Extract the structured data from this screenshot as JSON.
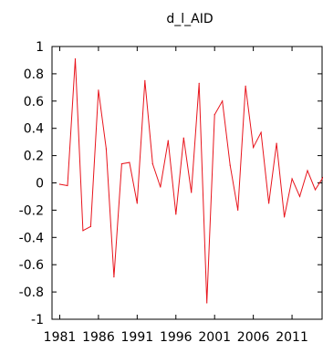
{
  "chart_data": {
    "type": "line",
    "title": "d_l_AID",
    "xlabel": "",
    "ylabel": "",
    "xlim": [
      1980,
      2015
    ],
    "ylim": [
      -1,
      1
    ],
    "x_ticks": [
      1981,
      1986,
      1991,
      1996,
      2001,
      2006,
      2011
    ],
    "x_tick_labels": [
      "1981",
      "1986",
      "1991",
      "1996",
      "2001",
      "2006",
      "2011"
    ],
    "y_ticks": [
      -1,
      -0.8,
      -0.6,
      -0.4,
      -0.2,
      0,
      0.2,
      0.4,
      0.6,
      0.8,
      1
    ],
    "y_tick_labels": [
      "-1",
      "-0.8",
      "-0.6",
      "-0.4",
      "-0.2",
      "0",
      "0.2",
      "0.4",
      "0.6",
      "0.8",
      "1"
    ],
    "grid": false,
    "line_color": "#e8141c",
    "series": [
      {
        "x": [
          1981,
          1982,
          1983,
          1984,
          1985,
          1986,
          1987,
          1988,
          1989,
          1990,
          1991,
          1992,
          1993,
          1994,
          1995,
          1996,
          1997,
          1998,
          1999,
          2000,
          2001,
          2002,
          2003,
          2004,
          2005,
          2006,
          2007,
          2008,
          2009,
          2010,
          2011,
          2012,
          2013,
          2014,
          2015
        ],
        "values": [
          -0.01,
          -0.02,
          0.91,
          -0.35,
          -0.32,
          0.68,
          0.25,
          -0.69,
          0.14,
          0.15,
          -0.15,
          0.75,
          0.14,
          -0.03,
          0.31,
          -0.23,
          0.33,
          -0.07,
          0.73,
          -0.88,
          0.5,
          0.6,
          0.13,
          -0.2,
          0.71,
          0.26,
          0.37,
          -0.15,
          0.29,
          -0.25,
          0.03,
          -0.1,
          0.09,
          -0.05,
          0.04
        ]
      }
    ]
  }
}
